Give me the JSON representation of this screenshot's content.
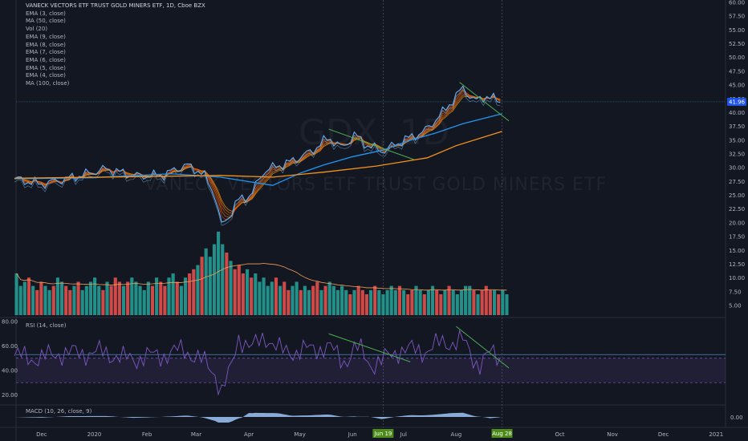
{
  "legend": {
    "title": "VANECK VECTORS ETF TRUST GOLD MINERS ETF, 1D, Cboe BZX",
    "indicators": [
      "EMA (3, close)",
      "MA (50, close)",
      "Vol (20)",
      "EMA (9, close)",
      "EMA (8, close)",
      "EMA (7, close)",
      "EMA (6, close)",
      "EMA (5, close)",
      "EMA (4, close)",
      "MA (100, close)"
    ]
  },
  "watermark": {
    "symbol": "GDX, 1D",
    "name": "VANECK VECTORS ETF TRUST GOLD MINERS ETF"
  },
  "rsi_label": "RSI (14, close)",
  "macd_label": "MACD (10, 26, close, 9)",
  "colors": {
    "background": "#131722",
    "price": "#4a90e2",
    "ma50": "#2196f3",
    "ma100": "#f7931a",
    "ema_fan": "#e8732c",
    "up": "#26a69a",
    "down": "#ef5350",
    "trend": "#4caf50",
    "rsi": "#7e57c2",
    "macd": "#9fc5f8",
    "last_price_bg": "#1e53e5",
    "date_marker_bg": "#4c8a1a"
  },
  "chart_data": [
    {
      "type": "line",
      "title": "VANECK VECTORS ETF TRUST GOLD MINERS ETF, 1D, Cboe BZX",
      "x_ticks": [
        "Dec",
        "2020",
        "Feb",
        "Mar",
        "Apr",
        "May",
        "Jun",
        "Jun 19",
        "Jul",
        "Aug",
        "Aug 28",
        "Oct",
        "Nov",
        "Dec",
        "2021"
      ],
      "y_ticks": [
        "60.00",
        "57.50",
        "55.00",
        "52.50",
        "50.00",
        "47.50",
        "45.00",
        "42.50",
        "40.00",
        "37.50",
        "35.00",
        "32.50",
        "30.00",
        "27.50",
        "25.00",
        "22.50",
        "20.00",
        "17.50",
        "15.00",
        "12.50",
        "10.00",
        "7.50",
        "5.00"
      ],
      "ylim": [
        5,
        60
      ],
      "last_price": "41.96",
      "highlighted_dates": [
        "Jun 19",
        "Aug 28"
      ],
      "series": [
        {
          "name": "EMA (3, close)",
          "points": [
            [
              "2019-11-15",
              28
            ],
            [
              "2019-12-01",
              27
            ],
            [
              "2019-12-20",
              28.3
            ],
            [
              "2020-01-08",
              29.8
            ],
            [
              "2020-01-25",
              28.5
            ],
            [
              "2020-02-10",
              28.6
            ],
            [
              "2020-02-24",
              30.5
            ],
            [
              "2020-03-05",
              29
            ],
            [
              "2020-03-12",
              25
            ],
            [
              "2020-03-16",
              19.5
            ],
            [
              "2020-03-20",
              21
            ],
            [
              "2020-03-25",
              24
            ],
            [
              "2020-04-02",
              25
            ],
            [
              "2020-04-10",
              29.5
            ],
            [
              "2020-04-25",
              31
            ],
            [
              "2020-05-08",
              33
            ],
            [
              "2020-05-18",
              35.5
            ],
            [
              "2020-05-26",
              33.5
            ],
            [
              "2020-06-02",
              36
            ],
            [
              "2020-06-10",
              34
            ],
            [
              "2020-06-19",
              33
            ],
            [
              "2020-07-01",
              35
            ],
            [
              "2020-07-13",
              36.5
            ],
            [
              "2020-07-24",
              40
            ],
            [
              "2020-08-05",
              44.5
            ],
            [
              "2020-08-12",
              42
            ],
            [
              "2020-08-18",
              43
            ],
            [
              "2020-08-28",
              41.96
            ]
          ]
        },
        {
          "name": "MA (50, close)",
          "points": [
            [
              "2019-11-15",
              28
            ],
            [
              "2020-01-01",
              28.2
            ],
            [
              "2020-02-15",
              28.9
            ],
            [
              "2020-03-15",
              28.3
            ],
            [
              "2020-04-15",
              26.8
            ],
            [
              "2020-05-01",
              29
            ],
            [
              "2020-05-15",
              30.5
            ],
            [
              "2020-06-01",
              32
            ],
            [
              "2020-06-19",
              33.2
            ],
            [
              "2020-07-05",
              35
            ],
            [
              "2020-07-20",
              36.3
            ],
            [
              "2020-08-05",
              38
            ],
            [
              "2020-08-28",
              39.8
            ]
          ]
        },
        {
          "name": "MA (100, close)",
          "points": [
            [
              "2019-11-15",
              28.1
            ],
            [
              "2020-02-01",
              28.4
            ],
            [
              "2020-03-15",
              28.6
            ],
            [
              "2020-04-15",
              28.3
            ],
            [
              "2020-05-15",
              29.2
            ],
            [
              "2020-06-15",
              30.3
            ],
            [
              "2020-07-15",
              31.8
            ],
            [
              "2020-08-01",
              34
            ],
            [
              "2020-08-28",
              36.6
            ]
          ]
        }
      ],
      "trendlines": [
        {
          "from": [
            "2020-05-18",
            37
          ],
          "to": [
            "2020-07-07",
            31.5
          ]
        },
        {
          "from": [
            "2020-08-03",
            45.5
          ],
          "to": [
            "2020-09-01",
            38.5
          ]
        }
      ]
    },
    {
      "type": "bar",
      "title": "",
      "series_name": "Vol (20)",
      "values": [
        10,
        7,
        8,
        9,
        7,
        6,
        8,
        7,
        6,
        7,
        9,
        8,
        7,
        6,
        7,
        8,
        6,
        7,
        8,
        9,
        7,
        6,
        8,
        7,
        9,
        8,
        7,
        8,
        9,
        8,
        7,
        6,
        8,
        7,
        9,
        8,
        7,
        9,
        10,
        8,
        7,
        9,
        10,
        11,
        12,
        14,
        16,
        14,
        17,
        20,
        17,
        15,
        13,
        11,
        12,
        10,
        11,
        9,
        10,
        8,
        9,
        7,
        8,
        9,
        7,
        8,
        6,
        7,
        8,
        6,
        7,
        6,
        7,
        8,
        6,
        7,
        8,
        7,
        6,
        7,
        6,
        5,
        6,
        7,
        6,
        5,
        6,
        7,
        6,
        5,
        6,
        7,
        6,
        7,
        6,
        5,
        6,
        7,
        6,
        5,
        6,
        7,
        6,
        5,
        6,
        7,
        6,
        5,
        6,
        7,
        7,
        6,
        5,
        6,
        7,
        6,
        6,
        5,
        6,
        5
      ],
      "ma_name": "Vol (20)"
    },
    {
      "type": "line",
      "title": "RSI (14, close)",
      "y_ticks": [
        "80.00",
        "60.00",
        "40.00",
        "20.00"
      ],
      "ylim": [
        15,
        82
      ],
      "band": [
        30,
        50
      ],
      "reference_line": 53,
      "trendlines": [
        {
          "from": [
            "2020-05-18",
            70
          ],
          "to": [
            "2020-07-05",
            47
          ]
        },
        {
          "from": [
            "2020-08-01",
            76
          ],
          "to": [
            "2020-09-01",
            42
          ]
        }
      ]
    },
    {
      "type": "area",
      "title": "MACD (10, 26, close, 9)",
      "y_ticks": [
        "0.00"
      ],
      "zero_label": "0.00"
    }
  ]
}
